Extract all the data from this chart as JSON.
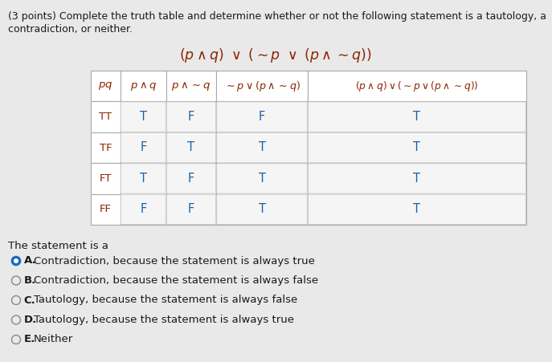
{
  "background_color": "#e9e9e9",
  "title_line1": "(3 points) Complete the truth table and determine whether or not the following statement is a tautology, a",
  "title_line2": "contradiction, or neither.",
  "formula_color": "#8b2500",
  "table_header_color": "#8b2500",
  "pq_color": "#8b2500",
  "tf_color": "#1a5fa8",
  "text_color": "#1a1a1a",
  "cell_bg": "#ffffff",
  "cell_bg_alt": "#f0f0f0",
  "border_color": "#aaaaaa",
  "selected_color": "#1a6bbf",
  "unselected_color": "#888888",
  "table_data": [
    [
      "TT",
      "T",
      "F",
      "F",
      "T"
    ],
    [
      "TF",
      "F",
      "T",
      "T",
      "T"
    ],
    [
      "FT",
      "T",
      "F",
      "T",
      "T"
    ],
    [
      "FF",
      "F",
      "F",
      "T",
      "T"
    ]
  ],
  "options": [
    {
      "label": "A.",
      "text": "Contradiction, because the statement is always true",
      "selected": true
    },
    {
      "label": "B.",
      "text": "Contradiction, because the statement is always false",
      "selected": false
    },
    {
      "label": "C.",
      "text": "Tautology, because the statement is always false",
      "selected": false
    },
    {
      "label": "D.",
      "text": "Tautology, because the statement is always true",
      "selected": false
    },
    {
      "label": "E.",
      "text": "Neither",
      "selected": false
    }
  ]
}
